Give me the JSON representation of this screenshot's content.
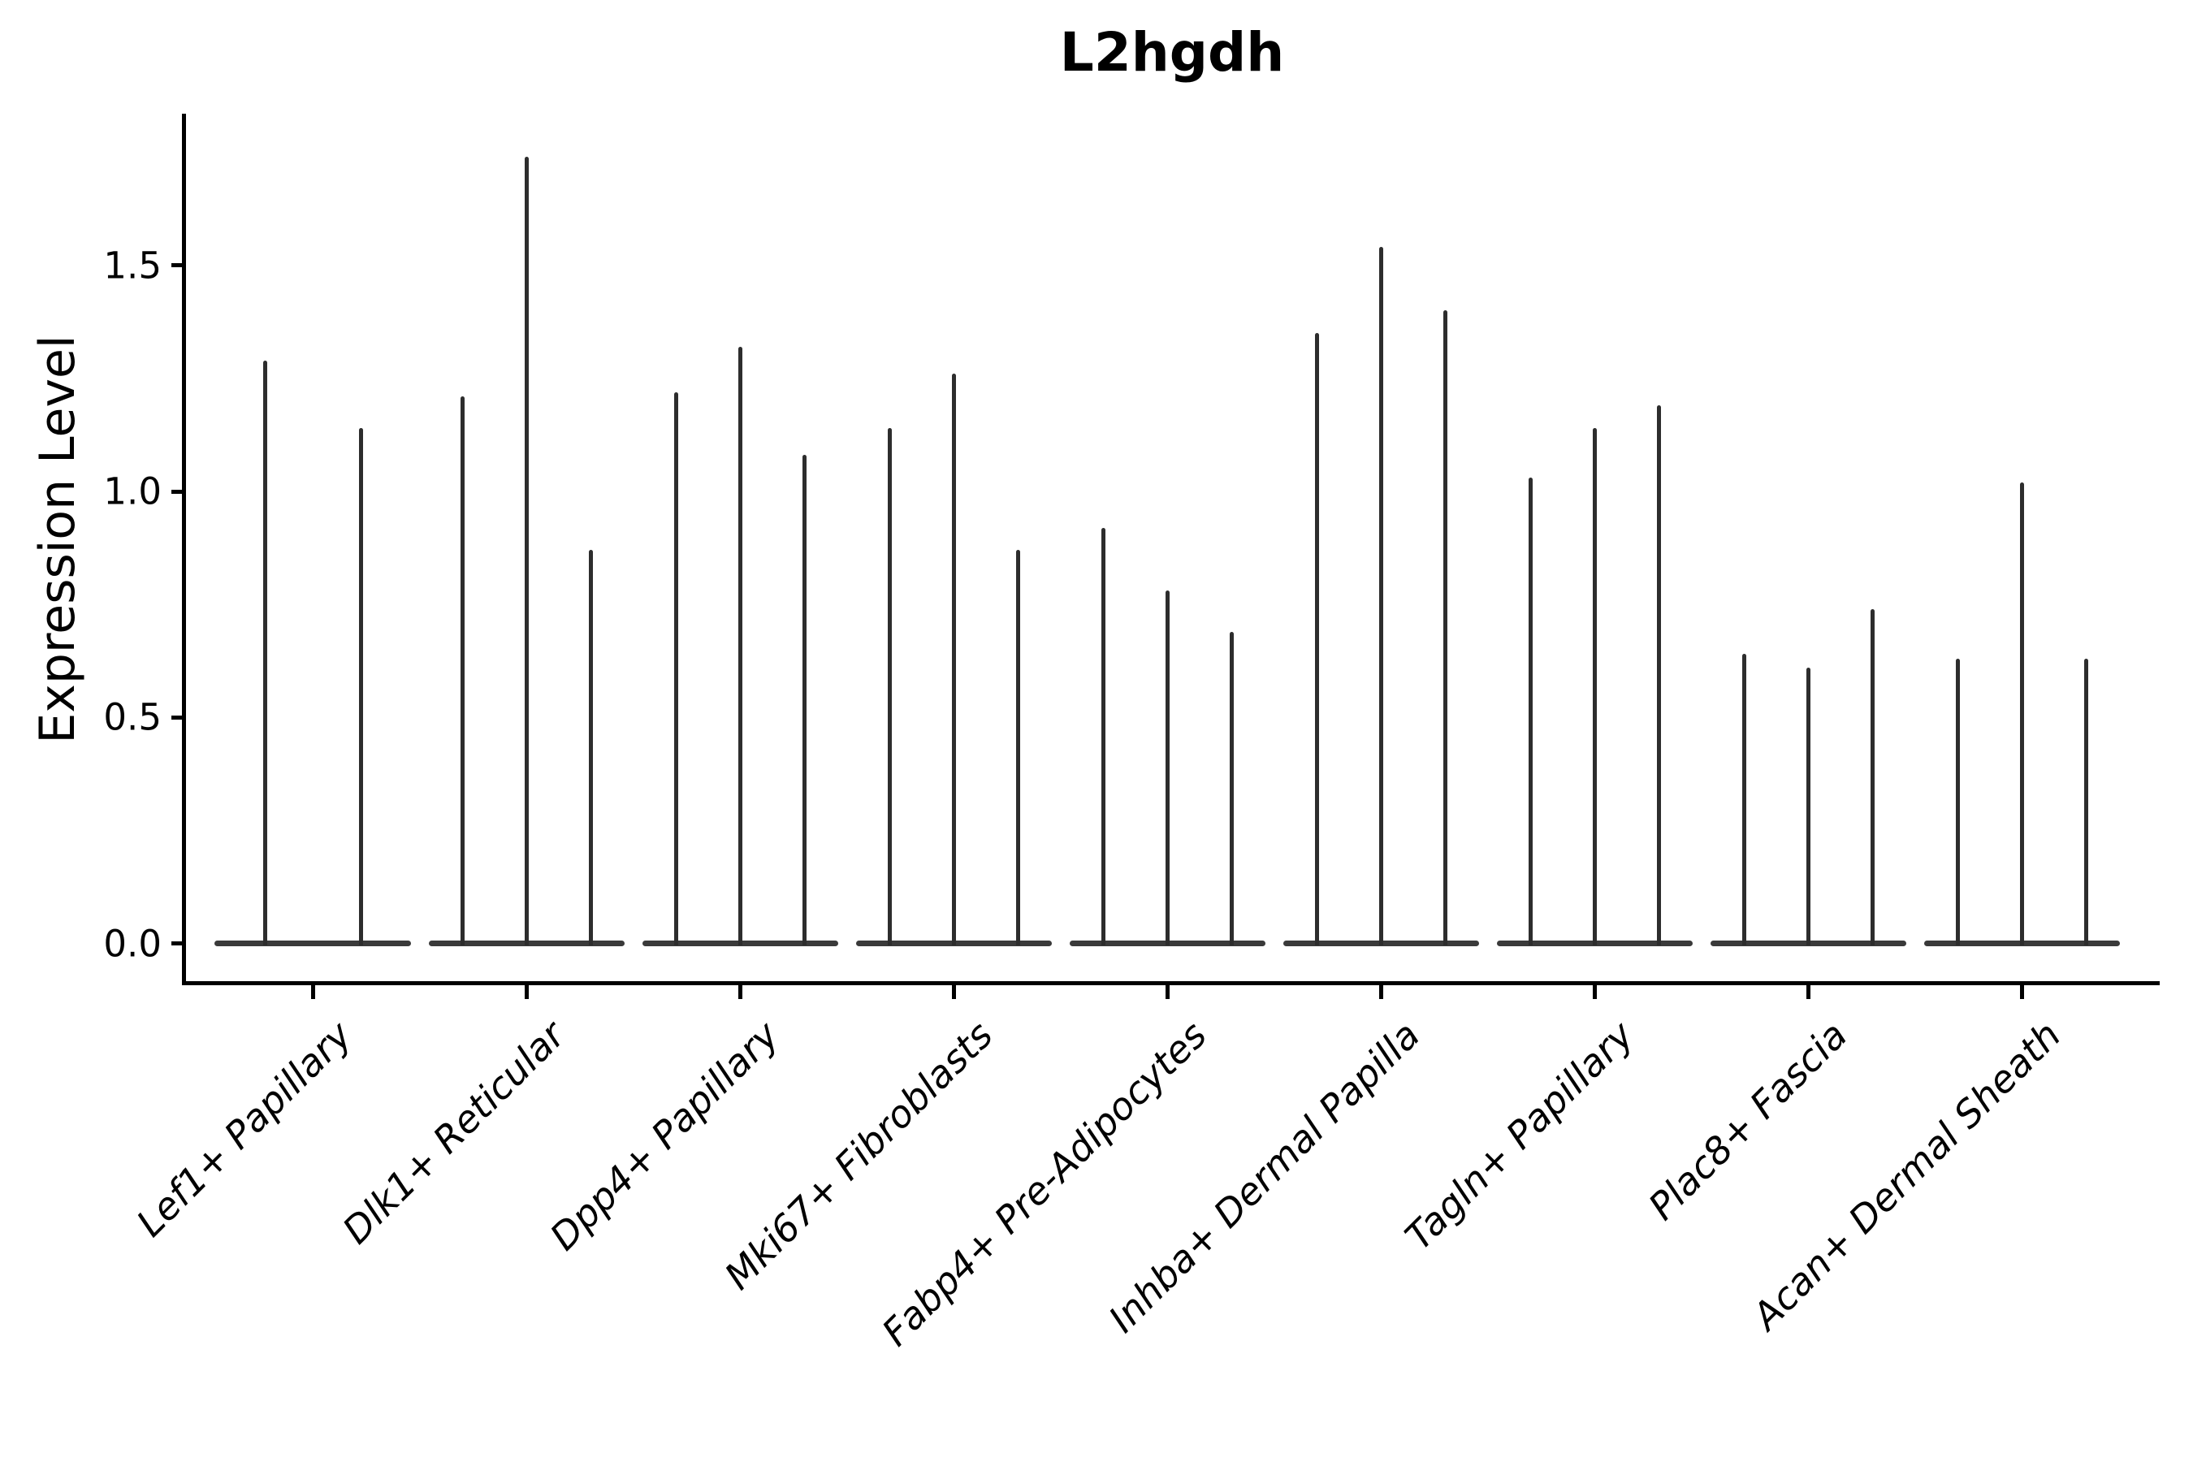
{
  "chart_data": {
    "type": "violin",
    "title": "L2hgdh",
    "ylabel": "Expression Level",
    "xlabel": "",
    "ytick_labels": [
      "0.0",
      "0.5",
      "1.0",
      "1.5"
    ],
    "ylim": [
      -0.09,
      1.84
    ],
    "grid": false,
    "legend_position": "none",
    "categories": [
      "Lef1+ Papillary",
      "Dlk1+ Reticular",
      "Dpp4+ Papillary",
      "Mki67+ Fibroblasts",
      "Fabp4+ Pre-Adipocytes",
      "Inhba+ Dermal Papilla",
      "Tagln+ Papillary",
      "Plac8+ Fascia",
      "Acan+ Dermal Sheath"
    ],
    "groups": [
      {
        "category": "Lef1+ Papillary",
        "violin_max_values": [
          1.29,
          1.14
        ]
      },
      {
        "category": "Dlk1+ Reticular",
        "violin_max_values": [
          1.21,
          1.74,
          0.87
        ]
      },
      {
        "category": "Dpp4+ Papillary",
        "violin_max_values": [
          1.22,
          1.32,
          1.08
        ]
      },
      {
        "category": "Mki67+ Fibroblasts",
        "violin_max_values": [
          1.14,
          1.26,
          0.87
        ]
      },
      {
        "category": "Fabp4+ Pre-Adipocytes",
        "violin_max_values": [
          0.92,
          0.78,
          0.69
        ]
      },
      {
        "category": "Inhba+ Dermal Papilla",
        "violin_max_values": [
          1.35,
          1.54,
          1.4
        ]
      },
      {
        "category": "Tagln+ Papillary",
        "violin_max_values": [
          1.03,
          1.14,
          1.19
        ]
      },
      {
        "category": "Plac8+ Fascia",
        "violin_max_values": [
          0.64,
          0.61,
          0.74
        ]
      },
      {
        "category": "Acan+ Dermal Sheath",
        "violin_max_values": [
          0.63,
          1.02,
          0.63
        ]
      }
    ],
    "violin_min_value": 0.0,
    "colors": {
      "violin": "#2d2d2d",
      "baseline": "#3a3a3a",
      "axis": "#000000",
      "text": "#000000",
      "background": "#ffffff"
    }
  }
}
